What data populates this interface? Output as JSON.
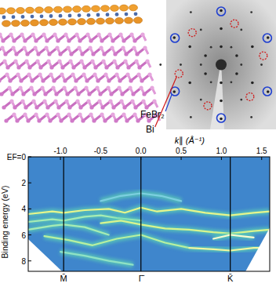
{
  "figure": {
    "layer_labels": [
      {
        "text": "FeBr₂",
        "color": "#1f3fd0"
      },
      {
        "text": "Bi",
        "color": "#d01818"
      }
    ]
  },
  "chart_data": {
    "type": "heatmap",
    "x_label": "k∥ (Å⁻¹)",
    "y_label": "Binding energy (eV)",
    "xlim": [
      -1.4,
      1.6
    ],
    "xticks": [
      {
        "value": -1,
        "label": "-1.0"
      },
      -0.5,
      {
        "value": 0,
        "label": "0.0"
      },
      0.5,
      {
        "value": 1,
        "label": "1.0"
      },
      1.5
    ],
    "ylim": [
      0,
      8.8
    ],
    "yticks": [
      {
        "value": 0,
        "label": "EF=0"
      },
      2,
      4,
      6,
      8
    ],
    "symmetry_points": [
      {
        "label": "M̄",
        "value": -0.96
      },
      {
        "label": "Γ̄",
        "value": 0
      },
      {
        "label": "K̄",
        "value": 1.11
      }
    ],
    "color": "#3f86cc",
    "series": [
      {
        "color": "#7ccfe0",
        "x": [
          -0.5,
          -0.25,
          0,
          0.25,
          0.5
        ],
        "values": [
          3.4,
          3.0,
          2.8,
          3.0,
          3.4
        ]
      },
      {
        "color": "#e6f58c",
        "x": [
          -1.4,
          -1.1,
          -0.96,
          -0.7,
          -0.4,
          -0.2,
          0,
          0.2,
          0.5,
          0.8,
          1.11,
          1.4,
          1.6
        ],
        "values": [
          4.4,
          4.2,
          4.3,
          4.1,
          4.0,
          4.3,
          3.9,
          4.2,
          4.0,
          4.3,
          4.5,
          4.3,
          4.2
        ]
      },
      {
        "color": "#a6ecb4",
        "x": [
          -1.4,
          -1.1,
          -0.96,
          -0.7,
          -0.5,
          -0.3,
          0
        ],
        "values": [
          5.0,
          4.8,
          4.9,
          4.6,
          4.5,
          4.7,
          4.9
        ]
      },
      {
        "color": "#d8f48e",
        "x": [
          -0.5,
          -0.25,
          0,
          0.3,
          0.6,
          0.9,
          1.11,
          1.4,
          1.6
        ],
        "values": [
          5.1,
          4.9,
          5.2,
          5.5,
          5.6,
          5.8,
          5.9,
          5.7,
          5.6
        ]
      },
      {
        "color": "#a6ecb4",
        "x": [
          -1.4,
          -1.1,
          -0.96,
          -0.7,
          -0.4
        ],
        "values": [
          5.6,
          5.3,
          5.2,
          5.4,
          6.0
        ]
      },
      {
        "color": "#b8f0a0",
        "x": [
          -1.2,
          -0.9,
          -0.6,
          -0.3,
          0,
          0.3,
          0.6
        ],
        "values": [
          6.1,
          6.4,
          6.8,
          6.3,
          6.0,
          6.6,
          7.0
        ]
      },
      {
        "color": "#f0f6a0",
        "x": [
          0.6,
          0.9,
          1.11,
          1.4,
          1.6
        ],
        "values": [
          7.0,
          7.1,
          7.2,
          7.0,
          7.0
        ]
      },
      {
        "color": "#8fe2c4",
        "x": [
          -1.0,
          -0.7,
          -0.4,
          -0.1
        ],
        "values": [
          7.3,
          7.6,
          8.0,
          8.3
        ]
      },
      {
        "color": "#fafcd0",
        "x": [
          0.9,
          1.11,
          1.4
        ],
        "values": [
          6.3,
          6.0,
          6.2
        ]
      }
    ]
  }
}
